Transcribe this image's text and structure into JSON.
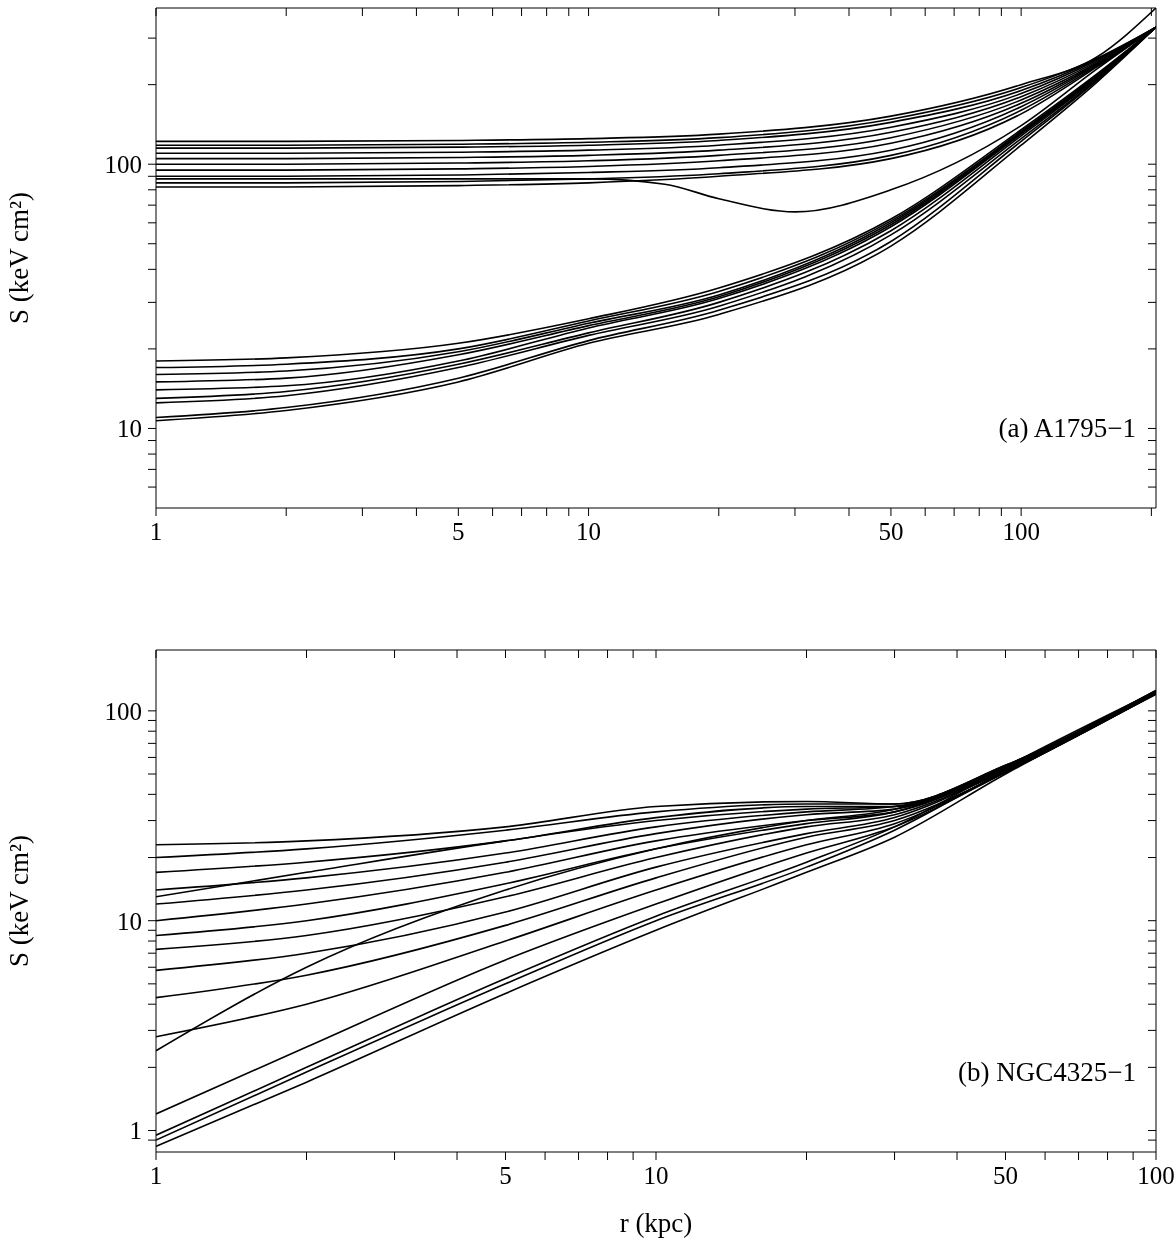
{
  "chart_data": [
    {
      "type": "line",
      "annotations": [
        "(a) A1795−1"
      ],
      "ylabel": "S (keV cm²)",
      "log": "xy",
      "marker": "none",
      "line_style": "solid",
      "xlim": [
        1,
        205
      ],
      "ylim": [
        5,
        390
      ],
      "xticks": [
        1,
        {
          "value": 2,
          "label": null
        },
        {
          "value": 3,
          "label": null
        },
        {
          "value": 4,
          "label": null
        },
        5,
        {
          "value": 6,
          "label": null
        },
        {
          "value": 7,
          "label": null
        },
        {
          "value": 8,
          "label": null
        },
        {
          "value": 9,
          "label": null
        },
        10,
        {
          "value": 20,
          "label": null
        },
        {
          "value": 30,
          "label": null
        },
        {
          "value": 40,
          "label": null
        },
        50,
        {
          "value": 60,
          "label": null
        },
        {
          "value": 70,
          "label": null
        },
        {
          "value": 80,
          "label": null
        },
        {
          "value": 90,
          "label": null
        },
        100,
        {
          "value": 200,
          "label": null
        }
      ],
      "yticks": [
        {
          "value": 6,
          "label": null
        },
        {
          "value": 7,
          "label": null
        },
        {
          "value": 8,
          "label": null
        },
        {
          "value": 9,
          "label": null
        },
        10,
        {
          "value": 20,
          "label": null
        },
        {
          "value": 30,
          "label": null
        },
        {
          "value": 40,
          "label": null
        },
        {
          "value": 50,
          "label": null
        },
        {
          "value": 60,
          "label": null
        },
        {
          "value": 70,
          "label": null
        },
        {
          "value": 80,
          "label": null
        },
        {
          "value": 90,
          "label": null
        },
        100,
        {
          "value": 200,
          "label": null
        },
        {
          "value": 300,
          "label": null
        }
      ],
      "x": [
        1,
        2,
        5,
        10,
        20,
        50,
        100,
        150,
        205
      ],
      "series": [
        {
          "color": "#000000",
          "values": [
            122,
            122,
            123,
            125,
            130,
            152,
            200,
            255,
            390
          ]
        },
        {
          "color": "#000000",
          "values": [
            118,
            118,
            119,
            121,
            126,
            148,
            195,
            252,
            330
          ]
        },
        {
          "color": "#000000",
          "values": [
            115,
            115,
            116,
            118,
            123,
            144,
            190,
            250,
            330
          ]
        },
        {
          "color": "#000000",
          "values": [
            110,
            110,
            111,
            113,
            118,
            138,
            185,
            248,
            330
          ]
        },
        {
          "color": "#000000",
          "values": [
            105,
            105,
            106,
            108,
            113,
            132,
            180,
            245,
            330
          ]
        },
        {
          "color": "#000000",
          "values": [
            100,
            100,
            101,
            103,
            108,
            126,
            175,
            242,
            330
          ]
        },
        {
          "color": "#000000",
          "values": [
            95,
            95,
            96,
            98,
            103,
            120,
            170,
            240,
            330
          ]
        },
        {
          "color": "#000000",
          "values": [
            90,
            90,
            91,
            93,
            97,
            113,
            165,
            238,
            330
          ]
        },
        {
          "color": "#000000",
          "values": [
            85,
            85,
            86,
            88,
            92,
            108,
            160,
            236,
            330
          ]
        },
        {
          "color": "#000000",
          "values": [
            82,
            82,
            83,
            85,
            90,
            105,
            155,
            234,
            330
          ]
        },
        {
          "color": "#000000",
          "x": [
            1,
            2,
            5,
            10,
            15,
            20,
            30,
            50,
            100,
            150,
            205
          ],
          "values": [
            88,
            88,
            88,
            88,
            84,
            74,
            66,
            80,
            140,
            230,
            330
          ]
        },
        {
          "color": "#000000",
          "values": [
            18,
            18.5,
            21,
            26,
            34,
            62,
            135,
            220,
            330
          ]
        },
        {
          "color": "#000000",
          "values": [
            17,
            17.5,
            20,
            25.5,
            33,
            61,
            133,
            218,
            330
          ]
        },
        {
          "color": "#000000",
          "values": [
            16,
            16.5,
            19.5,
            25,
            32,
            60,
            132,
            216,
            330
          ]
        },
        {
          "color": "#000000",
          "values": [
            15,
            15.5,
            19,
            24.5,
            31.5,
            59,
            131,
            215,
            330
          ]
        },
        {
          "color": "#000000",
          "values": [
            14,
            14.5,
            18,
            24,
            31,
            58,
            130,
            214,
            330
          ]
        },
        {
          "color": "#000000",
          "values": [
            13,
            13.8,
            17.5,
            23,
            30,
            56,
            128,
            212,
            330
          ]
        },
        {
          "color": "#000000",
          "values": [
            12.5,
            13.3,
            17,
            22.5,
            29,
            54,
            125,
            210,
            330
          ]
        },
        {
          "color": "#000000",
          "values": [
            11,
            12,
            15.5,
            21.5,
            28,
            51,
            122,
            208,
            330
          ]
        },
        {
          "color": "#000000",
          "values": [
            10.7,
            11.7,
            15,
            21,
            27,
            49,
            118,
            205,
            330
          ]
        }
      ]
    },
    {
      "type": "line",
      "annotations": [
        "(b) NGC4325−1"
      ],
      "xlabel": "r (kpc)",
      "ylabel": "S (keV cm²)",
      "log": "xy",
      "marker": "none",
      "line_style": "solid",
      "xlim": [
        1,
        100
      ],
      "ylim": [
        0.79,
        195
      ],
      "xticks": [
        1,
        {
          "value": 2,
          "label": null
        },
        {
          "value": 3,
          "label": null
        },
        {
          "value": 4,
          "label": null
        },
        5,
        {
          "value": 6,
          "label": null
        },
        {
          "value": 7,
          "label": null
        },
        {
          "value": 8,
          "label": null
        },
        {
          "value": 9,
          "label": null
        },
        10,
        {
          "value": 20,
          "label": null
        },
        {
          "value": 30,
          "label": null
        },
        {
          "value": 40,
          "label": null
        },
        50,
        {
          "value": 60,
          "label": null
        },
        {
          "value": 70,
          "label": null
        },
        {
          "value": 80,
          "label": null
        },
        {
          "value": 90,
          "label": null
        },
        100
      ],
      "yticks": [
        {
          "value": 0.9,
          "label": null
        },
        1,
        {
          "value": 2,
          "label": null
        },
        {
          "value": 3,
          "label": null
        },
        {
          "value": 4,
          "label": null
        },
        {
          "value": 5,
          "label": null
        },
        {
          "value": 6,
          "label": null
        },
        {
          "value": 7,
          "label": null
        },
        {
          "value": 8,
          "label": null
        },
        {
          "value": 9,
          "label": null
        },
        10,
        {
          "value": 20,
          "label": null
        },
        {
          "value": 30,
          "label": null
        },
        {
          "value": 40,
          "label": null
        },
        {
          "value": 50,
          "label": null
        },
        {
          "value": 60,
          "label": null
        },
        {
          "value": 70,
          "label": null
        },
        {
          "value": 80,
          "label": null
        },
        {
          "value": 90,
          "label": null
        },
        100
      ],
      "x": [
        1,
        2,
        5,
        10,
        20,
        30,
        50,
        100
      ],
      "series": [
        {
          "color": "#000000",
          "values": [
            23,
            24,
            28,
            35,
            37,
            36,
            55,
            125
          ]
        },
        {
          "color": "#000000",
          "values": [
            20,
            22,
            27,
            33,
            36,
            36,
            55,
            125
          ]
        },
        {
          "color": "#000000",
          "values": [
            17,
            19,
            24,
            31,
            35,
            35,
            54,
            124
          ]
        },
        {
          "color": "#000000",
          "values": [
            14,
            16,
            21,
            28,
            33,
            35,
            54,
            124
          ]
        },
        {
          "color": "#000000",
          "values": [
            13,
            17,
            24,
            30,
            34,
            35,
            54,
            124
          ]
        },
        {
          "color": "#000000",
          "values": [
            12,
            14,
            19,
            26,
            32,
            34,
            53,
            123
          ]
        },
        {
          "color": "#000000",
          "values": [
            10,
            12,
            17,
            24,
            30,
            33,
            53,
            123
          ]
        },
        {
          "color": "#000000",
          "values": [
            8.5,
            10,
            15,
            22,
            29,
            33,
            52,
            122
          ]
        },
        {
          "color": "#000000",
          "values": [
            7.3,
            8.5,
            13,
            20,
            28,
            32,
            52,
            122
          ]
        },
        {
          "color": "#000000",
          "values": [
            5.8,
            7,
            11,
            18,
            26,
            31,
            52,
            122
          ]
        },
        {
          "color": "#000000",
          "values": [
            4.3,
            5.5,
            9.5,
            16,
            25,
            30,
            51,
            121
          ]
        },
        {
          "color": "#000000",
          "values": [
            2.8,
            4,
            8,
            14,
            23,
            29,
            51,
            121
          ]
        },
        {
          "color": "#000000",
          "values": [
            2.4,
            6,
            14,
            22,
            30,
            34,
            53,
            123
          ]
        },
        {
          "color": "#000000",
          "values": [
            1.2,
            2.5,
            6.5,
            12,
            21,
            28,
            51,
            121
          ]
        },
        {
          "color": "#000000",
          "values": [
            0.95,
            2,
            5.3,
            10.5,
            19,
            28,
            54,
            124
          ]
        },
        {
          "color": "#000000",
          "values": [
            0.9,
            1.9,
            5,
            10,
            18,
            27,
            52,
            122
          ]
        },
        {
          "color": "#000000",
          "values": [
            0.84,
            1.7,
            4.5,
            9,
            17,
            25,
            50,
            120
          ]
        }
      ]
    }
  ]
}
